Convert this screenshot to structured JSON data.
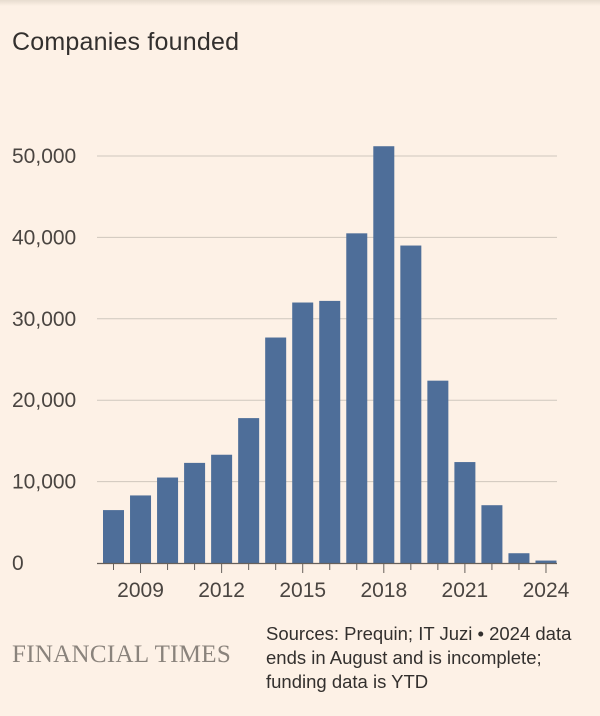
{
  "chart_data": {
    "type": "bar",
    "title": "Companies founded",
    "categories": [
      "2008",
      "2009",
      "2010",
      "2011",
      "2012",
      "2013",
      "2014",
      "2015",
      "2016",
      "2017",
      "2018",
      "2019",
      "2020",
      "2021",
      "2022",
      "2023",
      "2024"
    ],
    "values": [
      6500,
      8300,
      10500,
      12300,
      13300,
      17800,
      27700,
      32000,
      32200,
      40500,
      51200,
      39000,
      22400,
      12400,
      7100,
      1200,
      300
    ],
    "x_tick_labels": [
      "2009",
      "2012",
      "2015",
      "2018",
      "2021",
      "2024"
    ],
    "y_ticks": [
      0,
      10000,
      20000,
      30000,
      40000,
      50000
    ],
    "y_tick_labels": [
      "0",
      "10,000",
      "20,000",
      "30,000",
      "40,000",
      "50,000"
    ],
    "ylim": [
      0,
      55000
    ],
    "grid": true,
    "colors": {
      "bar": "#4e6e99",
      "grid": "#cfc7bd",
      "axis": "#66605b"
    }
  },
  "footer": {
    "logo": "FINANCIAL TIMES",
    "sources": "Sources: Prequin; IT Juzi • 2024 data ends in August and is incomplete; funding data is YTD"
  }
}
